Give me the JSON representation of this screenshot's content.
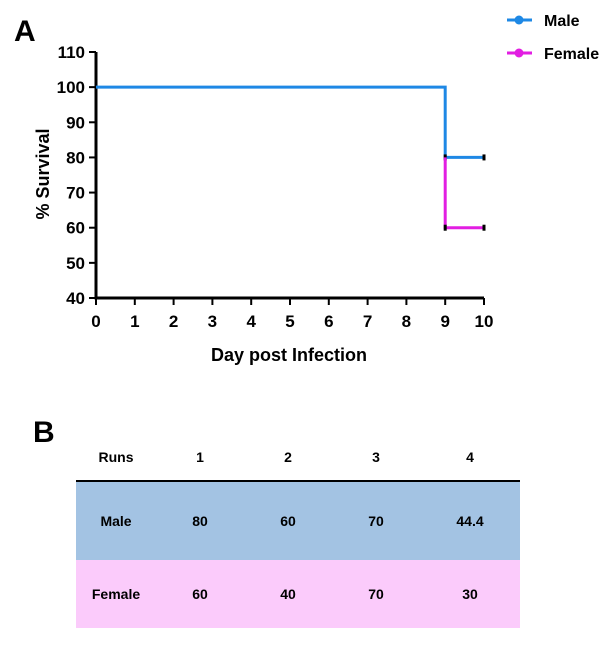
{
  "panels": {
    "a": "A",
    "b": "B"
  },
  "chart_data": {
    "type": "line",
    "subtype": "kaplan-meier survival step",
    "title": "",
    "xlabel": "Day post Infection",
    "ylabel": "% Survival",
    "xlim": [
      0,
      10
    ],
    "ylim": [
      40,
      110
    ],
    "x_ticks": [
      0,
      1,
      2,
      3,
      4,
      5,
      6,
      7,
      8,
      9,
      10
    ],
    "y_ticks": [
      40,
      50,
      60,
      70,
      80,
      90,
      100,
      110
    ],
    "grid": false,
    "legend": "top-right",
    "series": [
      {
        "name": "Male",
        "color": "#1e88e5",
        "x": [
          0,
          9,
          9,
          10
        ],
        "y": [
          100,
          100,
          80,
          80
        ],
        "censored": [
          [
            9,
            80
          ],
          [
            10,
            80
          ]
        ]
      },
      {
        "name": "Female",
        "color": "#e21ee2",
        "x": [
          9,
          9,
          10
        ],
        "y": [
          80,
          60,
          60
        ],
        "censored": [
          [
            9,
            60
          ],
          [
            10,
            60
          ]
        ]
      }
    ]
  },
  "table": {
    "header": [
      "Runs",
      "1",
      "2",
      "3",
      "4"
    ],
    "rows": [
      {
        "label": "Male",
        "values": [
          "80",
          "60",
          "70",
          "44.4"
        ],
        "color": "#a3c3e3"
      },
      {
        "label": "Female",
        "values": [
          "60",
          "40",
          "70",
          "30"
        ],
        "color": "#fbcbfb"
      }
    ]
  }
}
